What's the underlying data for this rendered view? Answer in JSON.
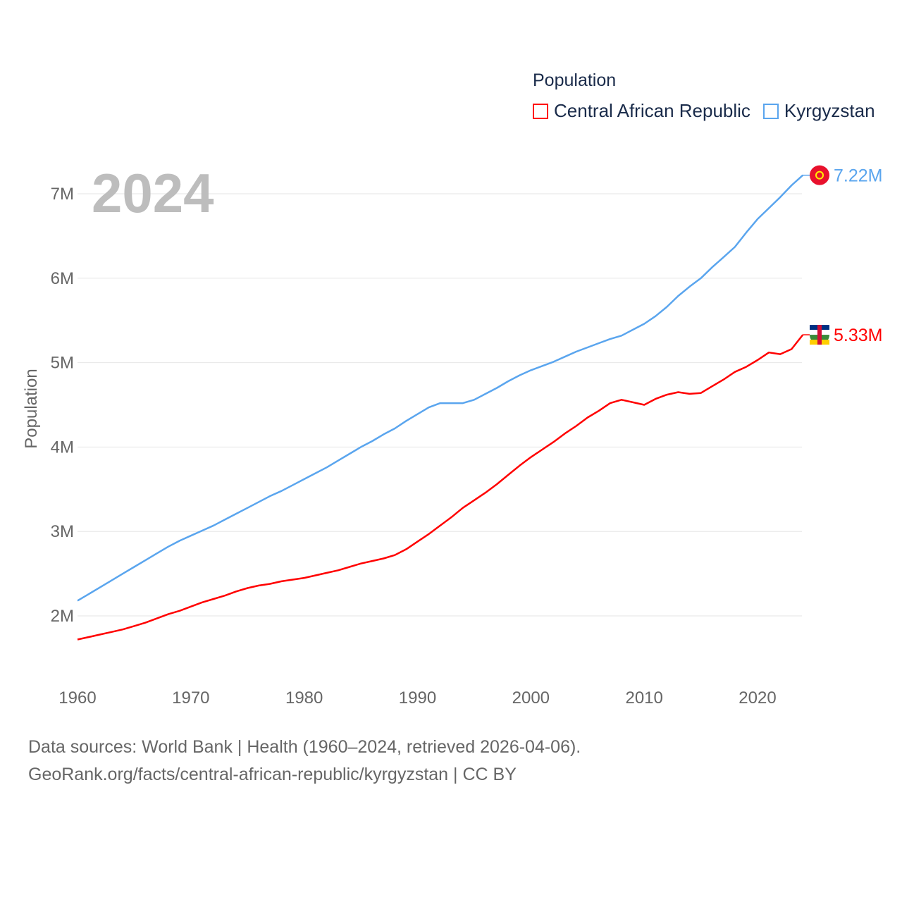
{
  "chart_data": {
    "type": "line",
    "title": "Population",
    "year_label": "2024",
    "ylabel": "Population",
    "xlabel": "",
    "xlim": [
      1960,
      2024
    ],
    "ylim": [
      1.4,
      7.5
    ],
    "x_ticks": [
      1960,
      1970,
      1980,
      1990,
      2000,
      2010,
      2020
    ],
    "y_ticks": [
      {
        "v": 2,
        "label": "2M"
      },
      {
        "v": 3,
        "label": "3M"
      },
      {
        "v": 4,
        "label": "4M"
      },
      {
        "v": 5,
        "label": "5M"
      },
      {
        "v": 6,
        "label": "6M"
      },
      {
        "v": 7,
        "label": "7M"
      }
    ],
    "grid": true,
    "legend_placement": "top-right",
    "x_start": 1960,
    "series": [
      {
        "name": "Central African Republic",
        "color": "#ff0000",
        "end_label": "5.33M",
        "values": [
          1.72,
          1.75,
          1.78,
          1.81,
          1.84,
          1.88,
          1.92,
          1.97,
          2.02,
          2.06,
          2.11,
          2.16,
          2.2,
          2.24,
          2.29,
          2.33,
          2.36,
          2.38,
          2.41,
          2.43,
          2.45,
          2.48,
          2.51,
          2.54,
          2.58,
          2.62,
          2.65,
          2.68,
          2.72,
          2.79,
          2.88,
          2.97,
          3.07,
          3.17,
          3.28,
          3.37,
          3.46,
          3.56,
          3.67,
          3.78,
          3.88,
          3.97,
          4.06,
          4.16,
          4.25,
          4.35,
          4.43,
          4.52,
          4.56,
          4.53,
          4.5,
          4.57,
          4.62,
          4.65,
          4.63,
          4.64,
          4.72,
          4.8,
          4.89,
          4.95,
          5.03,
          5.12,
          5.1,
          5.16,
          5.33
        ]
      },
      {
        "name": "Kyrgyzstan",
        "color": "#5aa5ee",
        "end_label": "7.22M",
        "values": [
          2.18,
          2.26,
          2.34,
          2.42,
          2.5,
          2.58,
          2.66,
          2.74,
          2.82,
          2.89,
          2.95,
          3.01,
          3.07,
          3.14,
          3.21,
          3.28,
          3.35,
          3.42,
          3.48,
          3.55,
          3.62,
          3.69,
          3.76,
          3.84,
          3.92,
          4.0,
          4.07,
          4.15,
          4.22,
          4.31,
          4.39,
          4.47,
          4.52,
          4.52,
          4.52,
          4.56,
          4.63,
          4.7,
          4.78,
          4.85,
          4.91,
          4.96,
          5.01,
          5.07,
          5.13,
          5.18,
          5.23,
          5.28,
          5.32,
          5.39,
          5.46,
          5.55,
          5.66,
          5.79,
          5.9,
          6.0,
          6.13,
          6.25,
          6.37,
          6.54,
          6.7,
          6.83,
          6.96,
          7.1,
          7.22
        ]
      }
    ]
  },
  "legend": {
    "title": "Population",
    "items": [
      "Central African Republic",
      "Kyrgyzstan"
    ]
  },
  "footer": {
    "line1": "Data sources: World Bank | Health (1960–2024, retrieved 2026-04-06).",
    "line2": "GeoRank.org/facts/central-african-republic/kyrgyzstan | CC BY"
  }
}
